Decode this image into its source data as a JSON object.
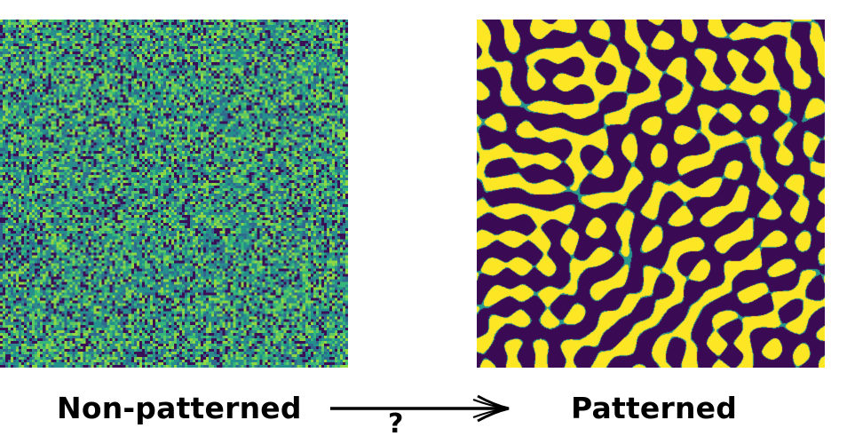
{
  "labels": {
    "left": "Non-patterned",
    "right": "Patterned",
    "transition": "?"
  },
  "colors": {
    "viridis_dark": "#3b0f56",
    "viridis_teal": "#2c8a8c",
    "viridis_green": "#5cc863",
    "viridis_yellow": "#fde725",
    "pattern_background": "#3a0a55",
    "pattern_stripe": "#fde725"
  },
  "panels": [
    {
      "name": "noise-field",
      "description_type": "random-noise"
    },
    {
      "name": "turing-pattern",
      "description_type": "labyrinth"
    }
  ]
}
